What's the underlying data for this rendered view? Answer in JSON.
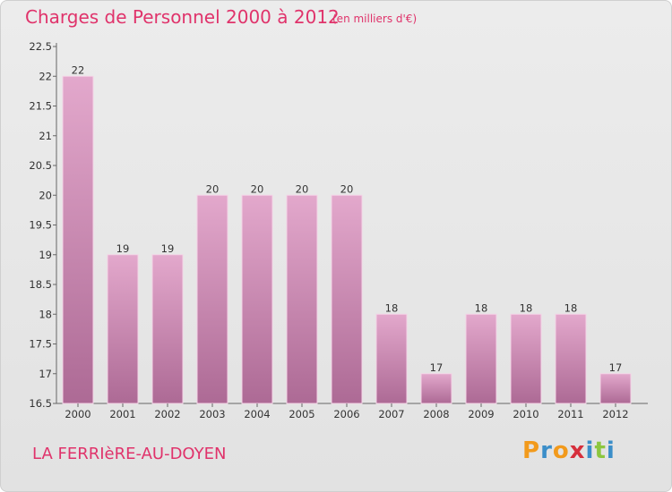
{
  "header": {
    "title": "Charges de Personnel 2000 à 2012",
    "subtitle": "(en milliers d'€)"
  },
  "footer": {
    "commune": "LA FERRIèRE-AU-DOYEN",
    "logo": [
      "P",
      "r",
      "o",
      "x",
      "i",
      "t",
      "i"
    ],
    "logo_colors": [
      "#f29a1c",
      "#3b8ec9",
      "#f29a1c",
      "#d62f3c",
      "#3b8ec9",
      "#8cc63f",
      "#3b8ec9"
    ]
  },
  "colors": {
    "title": "#e0336b",
    "bar_top": "#e3a8cc",
    "bar_bottom": "#ad6a95"
  },
  "chart_data": {
    "type": "bar",
    "categories": [
      "2000",
      "2001",
      "2002",
      "2003",
      "2004",
      "2005",
      "2006",
      "2007",
      "2008",
      "2009",
      "2010",
      "2011",
      "2012"
    ],
    "values": [
      22,
      19,
      19,
      20,
      20,
      20,
      20,
      18,
      17,
      18,
      18,
      18,
      17
    ],
    "value_labels": [
      "22",
      "19",
      "19",
      "20",
      "20",
      "20",
      "20",
      "18",
      "17",
      "18",
      "18",
      "18",
      "17"
    ],
    "ylim": [
      16.5,
      22.5
    ],
    "yticks": [
      "16.5",
      "17",
      "17.5",
      "18",
      "18.5",
      "19",
      "19.5",
      "20",
      "20.5",
      "21",
      "21.5",
      "22",
      "22.5"
    ],
    "grid": false,
    "legend": "none"
  }
}
